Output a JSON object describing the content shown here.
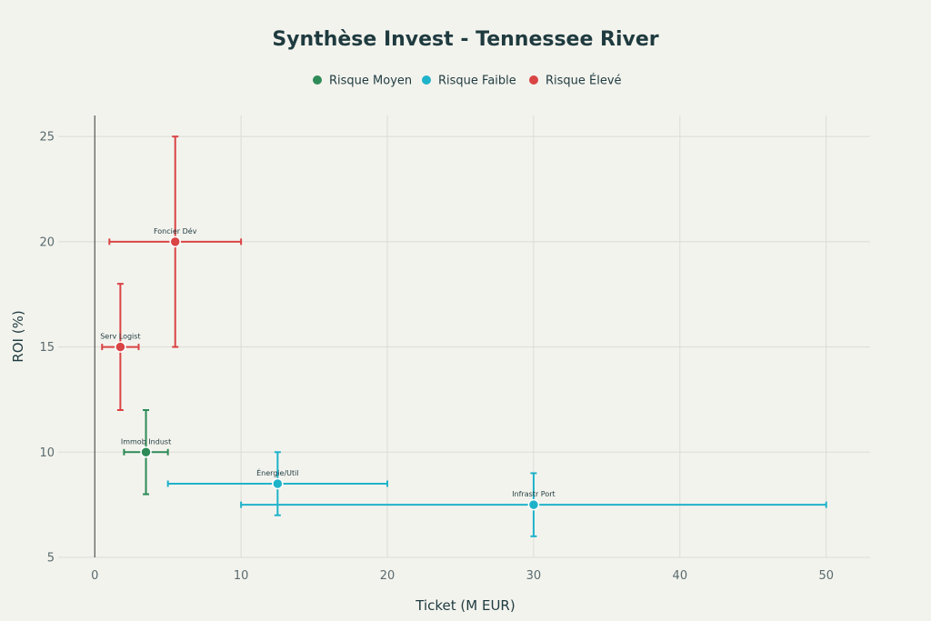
{
  "chart_data": {
    "type": "scatter",
    "title": "Synthèse Invest - Tennessee River",
    "xlabel": "Ticket (M EUR)",
    "ylabel": "ROI (%)",
    "xlim": [
      -2.5,
      53
    ],
    "ylim": [
      5,
      26
    ],
    "x_ticks": [
      0,
      10,
      20,
      30,
      40,
      50
    ],
    "y_ticks": [
      5,
      10,
      15,
      20,
      25
    ],
    "grid": true,
    "legend_position": "top-center",
    "series": [
      {
        "name": "Risque Moyen",
        "color": "#2e8b57",
        "points": [
          {
            "label": "Immob Indust",
            "x": 3.5,
            "y": 10,
            "x_err": [
              2,
              5
            ],
            "y_err": [
              8,
              12
            ]
          }
        ]
      },
      {
        "name": "Risque Faible",
        "color": "#1fb3c9",
        "points": [
          {
            "label": "Énergie/Util",
            "x": 12.5,
            "y": 8.5,
            "x_err": [
              5,
              20
            ],
            "y_err": [
              7,
              10
            ]
          },
          {
            "label": "Infrastr Port",
            "x": 30,
            "y": 7.5,
            "x_err": [
              10,
              50
            ],
            "y_err": [
              6,
              9
            ]
          }
        ]
      },
      {
        "name": "Risque Élevé",
        "color": "#d94444",
        "points": [
          {
            "label": "Serv Logist",
            "x": 1.75,
            "y": 15,
            "x_err": [
              0.5,
              3
            ],
            "y_err": [
              12,
              18
            ]
          },
          {
            "label": "Foncier Dév",
            "x": 5.5,
            "y": 20,
            "x_err": [
              1,
              10
            ],
            "y_err": [
              15,
              25
            ]
          }
        ]
      }
    ]
  }
}
